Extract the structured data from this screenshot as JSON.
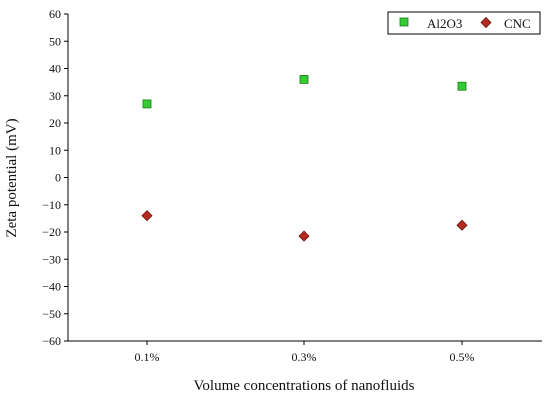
{
  "chart_data": {
    "type": "scatter",
    "title": "",
    "xlabel": "Volume concentrations of nanofluids",
    "ylabel": "Zeta potential (mV)",
    "categories": [
      "0.1%",
      "0.3%",
      "0.5%"
    ],
    "ylim": [
      -60,
      60
    ],
    "yticks": [
      60,
      50,
      40,
      30,
      20,
      10,
      0,
      -10,
      -20,
      -30,
      -40,
      -50,
      -60
    ],
    "grid": false,
    "legend_position": "top-right",
    "series": [
      {
        "name": "Al2O3",
        "marker": "square",
        "color": "#33cc33",
        "values": [
          27,
          36,
          33.5
        ]
      },
      {
        "name": "CNC",
        "marker": "diamond",
        "color": "#b52a1f",
        "values": [
          -14,
          -21.5,
          -17.5
        ]
      }
    ]
  }
}
